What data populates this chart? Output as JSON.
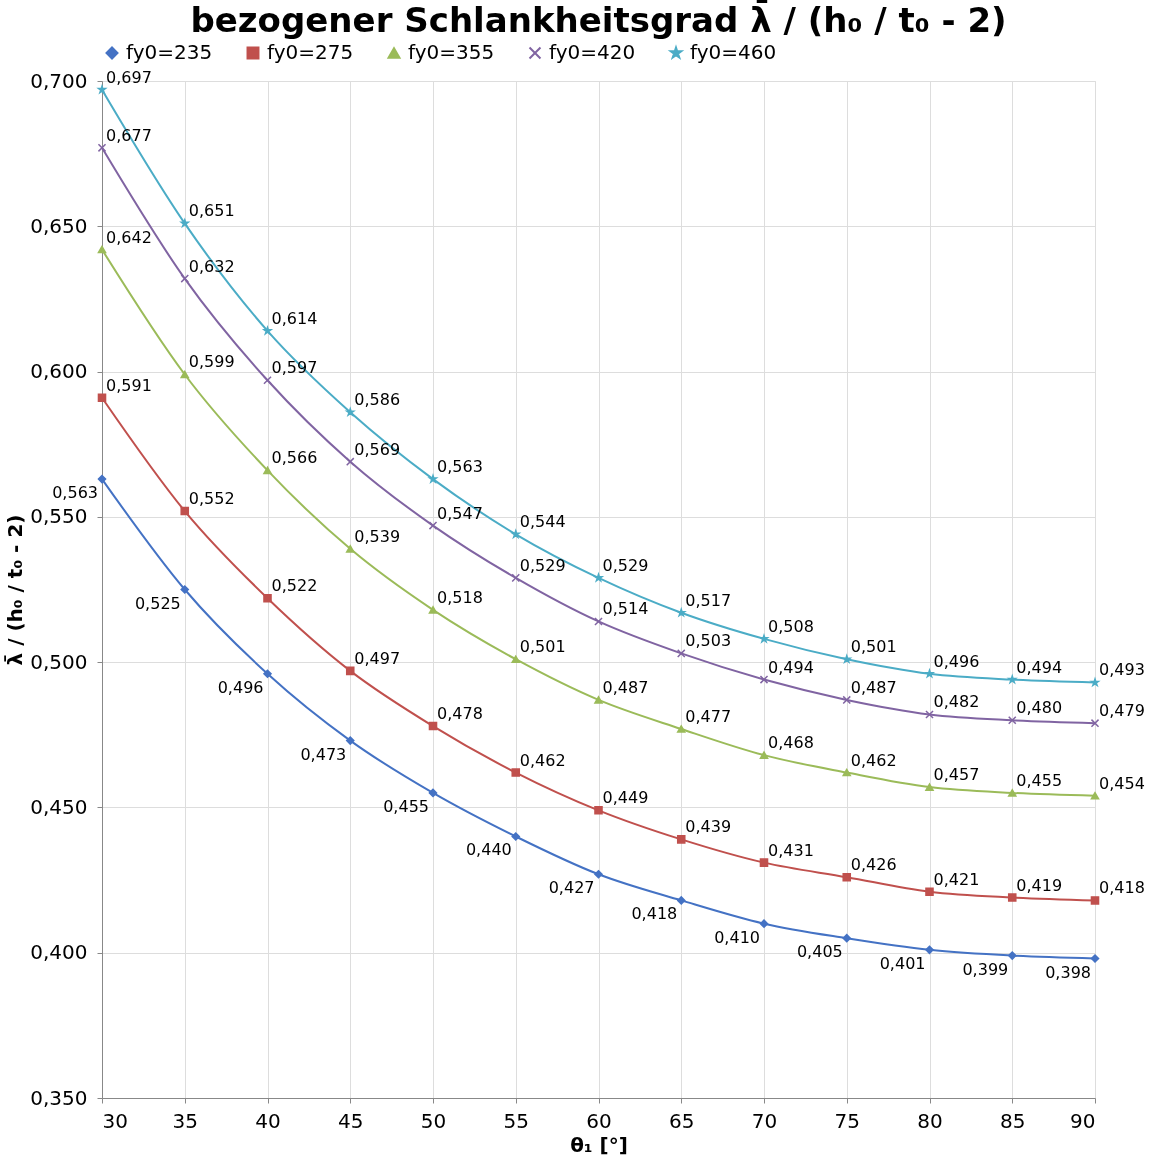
{
  "chart_data": {
    "type": "line",
    "title": "bezogener Schlankheitsgrad  λ̄ / (h₀ / t₀ - 2)",
    "xlabel": "θ₁ [°]",
    "ylabel": "λ̄ / (h₀ / t₀ - 2)",
    "x": [
      30,
      35,
      40,
      45,
      50,
      55,
      60,
      65,
      70,
      75,
      80,
      85,
      90
    ],
    "xlim": [
      30,
      90
    ],
    "xticks": [
      30,
      35,
      40,
      45,
      50,
      55,
      60,
      65,
      70,
      75,
      80,
      85,
      90
    ],
    "ylim": [
      0.35,
      0.7
    ],
    "yticks": [
      {
        "value": 0.35,
        "label": "0,350"
      },
      {
        "value": 0.4,
        "label": "0,400"
      },
      {
        "value": 0.45,
        "label": "0,450"
      },
      {
        "value": 0.5,
        "label": "0,500"
      },
      {
        "value": 0.55,
        "label": "0,550"
      },
      {
        "value": 0.6,
        "label": "0,600"
      },
      {
        "value": 0.65,
        "label": "0,650"
      },
      {
        "value": 0.7,
        "label": "0,700"
      }
    ],
    "grid": true,
    "legend": "top",
    "series": [
      {
        "name": "fy0=235",
        "color": "#4472c4",
        "marker": "diamond",
        "values": [
          0.563,
          0.525,
          0.496,
          0.473,
          0.455,
          0.44,
          0.427,
          0.418,
          0.41,
          0.405,
          0.401,
          0.399,
          0.398
        ],
        "value_labels": [
          "0,563",
          "0,525",
          "0,496",
          "0,473",
          "0,455",
          "0,440",
          "0,427",
          "0,418",
          "0,410",
          "0,405",
          "0,401",
          "0,399",
          "0,398"
        ]
      },
      {
        "name": "fy0=275",
        "color": "#c0504d",
        "marker": "square",
        "values": [
          0.591,
          0.552,
          0.522,
          0.497,
          0.478,
          0.462,
          0.449,
          0.439,
          0.431,
          0.426,
          0.421,
          0.419,
          0.418
        ],
        "value_labels": [
          "0,591",
          "0,552",
          "0,522",
          "0,497",
          "0,478",
          "0,462",
          "0,449",
          "0,439",
          "0,431",
          "0,426",
          "0,421",
          "0,419",
          "0,418"
        ]
      },
      {
        "name": "fy0=355",
        "color": "#9bbb59",
        "marker": "triangle",
        "values": [
          0.642,
          0.599,
          0.566,
          0.539,
          0.518,
          0.501,
          0.487,
          0.477,
          0.468,
          0.462,
          0.457,
          0.455,
          0.454
        ],
        "value_labels": [
          "0,642",
          "0,599",
          "0,566",
          "0,539",
          "0,518",
          "0,501",
          "0,487",
          "0,477",
          "0,468",
          "0,462",
          "0,457",
          "0,455",
          "0,454"
        ]
      },
      {
        "name": "fy0=420",
        "color": "#8064a2",
        "marker": "cross",
        "values": [
          0.677,
          0.632,
          0.597,
          0.569,
          0.547,
          0.529,
          0.514,
          0.503,
          0.494,
          0.487,
          0.482,
          0.48,
          0.479
        ],
        "value_labels": [
          "0,677",
          "0,632",
          "0,597",
          "0,569",
          "0,547",
          "0,529",
          "0,514",
          "0,503",
          "0,494",
          "0,487",
          "0,482",
          "0,480",
          "0,479"
        ]
      },
      {
        "name": "fy0=460",
        "color": "#4bacc6",
        "marker": "star",
        "values": [
          0.697,
          0.651,
          0.614,
          0.586,
          0.563,
          0.544,
          0.529,
          0.517,
          0.508,
          0.501,
          0.496,
          0.494,
          0.493
        ],
        "value_labels": [
          "0,697",
          "0,651",
          "0,614",
          "0,586",
          "0,563",
          "0,544",
          "0,529",
          "0,517",
          "0,508",
          "0,501",
          "0,496",
          "0,494",
          "0,493"
        ]
      }
    ]
  }
}
